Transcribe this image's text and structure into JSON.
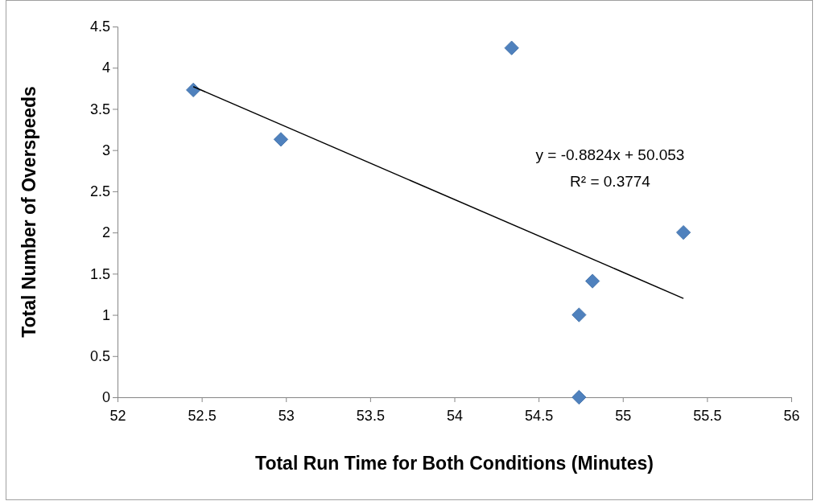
{
  "chart_data": {
    "type": "scatter",
    "xlabel": "Total Run Time for Both Conditions (Minutes)",
    "ylabel": "Total Number of Overspeeds",
    "xlim": [
      52,
      56
    ],
    "xticks": [
      52,
      52.5,
      53,
      53.5,
      54,
      54.5,
      55,
      55.5,
      56
    ],
    "ylim": [
      0,
      4.5
    ],
    "yticks": [
      0,
      0.5,
      1,
      1.5,
      2,
      2.5,
      3,
      3.5,
      4,
      4.5
    ],
    "series": [
      {
        "marker": "diamond",
        "color": "#4f81bd",
        "x": [
          52.45,
          52.97,
          54.34,
          55.36,
          54.82,
          54.74,
          54.74
        ],
        "values": [
          3.73,
          3.13,
          4.24,
          2,
          1.41,
          1,
          0
        ]
      },
      {
        "type": "line",
        "marker": "none",
        "color": "#000000",
        "x": [
          52.45,
          55.36
        ],
        "values": [
          3.77,
          1.2
        ]
      }
    ],
    "annotations": [
      "y = -0.8824x + 50.053",
      "R² = 0.3774"
    ]
  }
}
